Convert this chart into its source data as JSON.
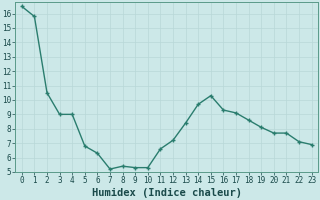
{
  "x": [
    0,
    1,
    2,
    3,
    4,
    5,
    6,
    7,
    8,
    9,
    10,
    11,
    12,
    13,
    14,
    15,
    16,
    17,
    18,
    19,
    20,
    21,
    22,
    23
  ],
  "y": [
    16.5,
    15.8,
    10.5,
    9.0,
    9.0,
    6.8,
    6.3,
    5.2,
    5.4,
    5.3,
    5.3,
    6.6,
    7.2,
    8.4,
    9.7,
    10.3,
    9.3,
    9.1,
    8.6,
    8.1,
    7.7,
    7.7,
    7.1,
    6.9
  ],
  "line_color": "#2a7d6e",
  "marker": "+",
  "marker_color": "#2a7d6e",
  "bg_color": "#cce8e8",
  "grid_major_color": "#b8d8d8",
  "grid_minor_color": "#d8ecec",
  "xlabel": "Humidex (Indice chaleur)",
  "xlim": [
    -0.5,
    23.5
  ],
  "ylim": [
    5,
    16.8
  ],
  "yticks": [
    5,
    6,
    7,
    8,
    9,
    10,
    11,
    12,
    13,
    14,
    15,
    16
  ],
  "xticks": [
    0,
    1,
    2,
    3,
    4,
    5,
    6,
    7,
    8,
    9,
    10,
    11,
    12,
    13,
    14,
    15,
    16,
    17,
    18,
    19,
    20,
    21,
    22,
    23
  ],
  "tick_label_fontsize": 5.5,
  "xlabel_fontsize": 7.5,
  "linewidth": 1.0,
  "markersize": 3.5
}
